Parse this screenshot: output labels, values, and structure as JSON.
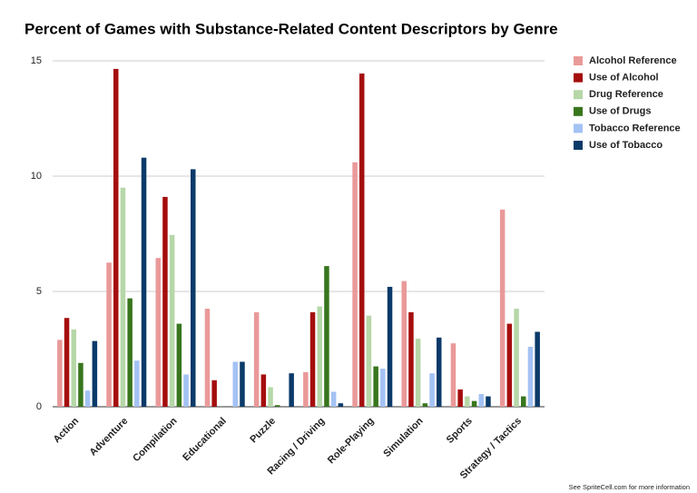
{
  "chart_data": {
    "type": "bar",
    "title": "Percent of Games with Substance-Related Content Descriptors by Genre",
    "categories": [
      "Action",
      "Adventure",
      "Compilation",
      "Educational",
      "Puzzle",
      "Racing / Driving",
      "Role-Playing",
      "Simulation",
      "Sports",
      "Strategy / Tactics"
    ],
    "series": [
      {
        "name": "Alcohol Reference",
        "color": "#ea9999",
        "values": [
          2.9,
          6.25,
          6.45,
          4.25,
          4.1,
          1.5,
          10.6,
          5.45,
          2.75,
          8.55
        ]
      },
      {
        "name": "Use of Alcohol",
        "color": "#a50d0d",
        "values": [
          3.85,
          14.65,
          9.1,
          1.15,
          1.4,
          4.1,
          14.45,
          4.1,
          0.75,
          3.6
        ]
      },
      {
        "name": "Drug Reference",
        "color": "#b6d7a8",
        "values": [
          3.35,
          9.5,
          7.45,
          0,
          0.85,
          4.35,
          3.95,
          2.95,
          0.45,
          4.25
        ]
      },
      {
        "name": "Use of Drugs",
        "color": "#38761d",
        "values": [
          1.9,
          4.7,
          3.6,
          0,
          0.07,
          6.1,
          1.75,
          0.15,
          0.25,
          0.45
        ]
      },
      {
        "name": "Tobacco Reference",
        "color": "#a4c2f4",
        "values": [
          0.7,
          2.0,
          1.4,
          1.95,
          0,
          0.65,
          1.65,
          1.45,
          0.55,
          2.6
        ]
      },
      {
        "name": "Use of Tobacco",
        "color": "#0b3a69",
        "values": [
          2.85,
          10.8,
          10.3,
          1.95,
          1.45,
          0.15,
          5.2,
          3.0,
          0.45,
          3.25
        ]
      }
    ],
    "ylim": [
      0,
      15
    ],
    "yticks": [
      0,
      5,
      10,
      15
    ],
    "grid": true,
    "footnote": "See SpriteCell.com for more information"
  }
}
